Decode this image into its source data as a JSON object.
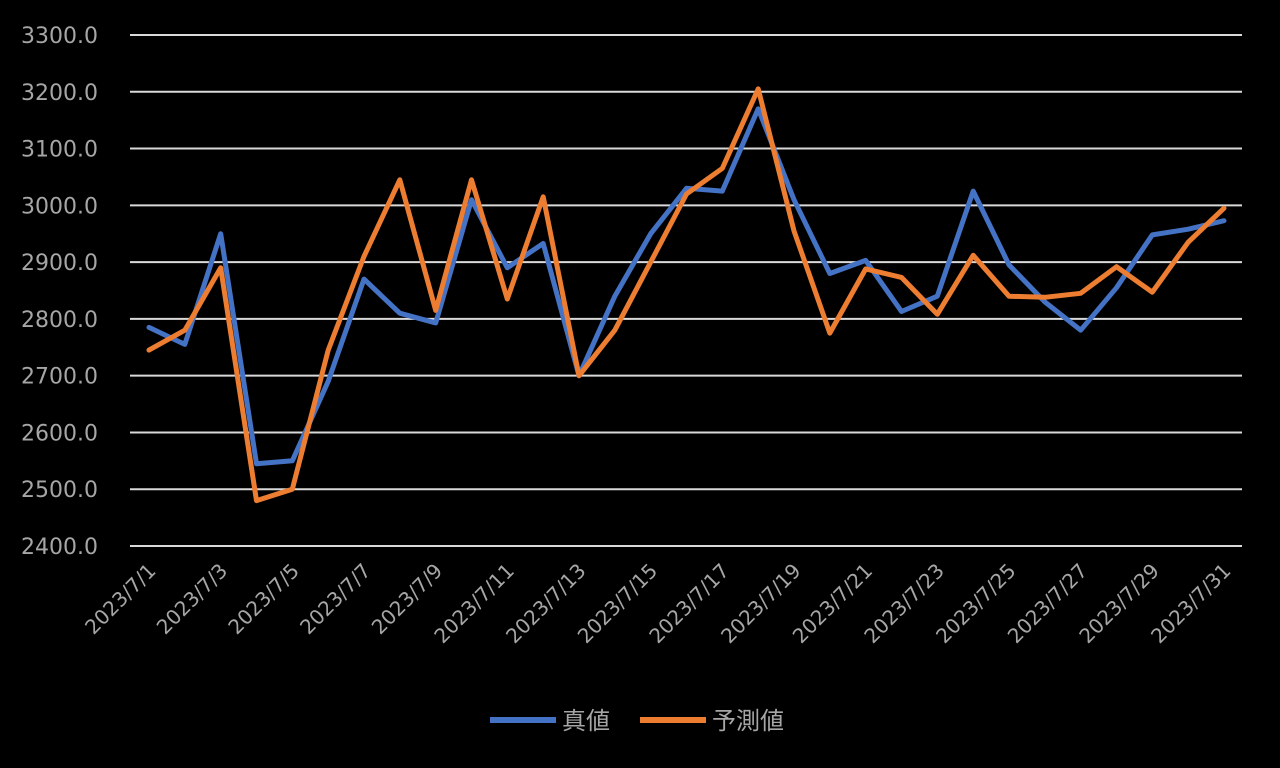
{
  "chart_data": {
    "type": "line",
    "x": [
      "2023/7/1",
      "2023/7/2",
      "2023/7/3",
      "2023/7/4",
      "2023/7/5",
      "2023/7/6",
      "2023/7/7",
      "2023/7/8",
      "2023/7/9",
      "2023/7/10",
      "2023/7/11",
      "2023/7/12",
      "2023/7/13",
      "2023/7/14",
      "2023/7/15",
      "2023/7/16",
      "2023/7/17",
      "2023/7/18",
      "2023/7/19",
      "2023/7/20",
      "2023/7/21",
      "2023/7/22",
      "2023/7/23",
      "2023/7/24",
      "2023/7/25",
      "2023/7/26",
      "2023/7/27",
      "2023/7/28",
      "2023/7/29",
      "2023/7/30",
      "2023/7/31"
    ],
    "x_tick_labels": [
      "2023/7/1",
      "2023/7/3",
      "2023/7/5",
      "2023/7/7",
      "2023/7/9",
      "2023/7/11",
      "2023/7/13",
      "2023/7/15",
      "2023/7/17",
      "2023/7/19",
      "2023/7/21",
      "2023/7/23",
      "2023/7/25",
      "2023/7/27",
      "2023/7/29",
      "2023/7/31"
    ],
    "series": [
      {
        "name": "真値",
        "color": "#4472c4",
        "values": [
          2785,
          2755,
          2950,
          2545,
          2550,
          2690,
          2870,
          2810,
          2793,
          3010,
          2890,
          2933,
          2700,
          2840,
          2950,
          3030,
          3025,
          3170,
          3010,
          2880,
          2903,
          2813,
          2840,
          3025,
          2895,
          2830,
          2780,
          2855,
          2948,
          2958,
          2973
        ]
      },
      {
        "name": "予測値",
        "color": "#ed7d31",
        "values": [
          2745,
          2780,
          2890,
          2480,
          2500,
          2745,
          2910,
          3045,
          2815,
          3045,
          2835,
          3015,
          2700,
          2780,
          2900,
          3020,
          3065,
          3205,
          2955,
          2775,
          2888,
          2873,
          2808,
          2912,
          2840,
          2838,
          2845,
          2892,
          2847,
          2935,
          2995
        ]
      }
    ],
    "y_tick_labels": [
      "2400.0",
      "2500.0",
      "2600.0",
      "2700.0",
      "2800.0",
      "2900.0",
      "3000.0",
      "3100.0",
      "3200.0",
      "3300.0"
    ],
    "ylim": [
      2400,
      3300
    ],
    "grid": true,
    "legend": "bottom",
    "title": "",
    "xlabel": "",
    "ylabel": ""
  }
}
